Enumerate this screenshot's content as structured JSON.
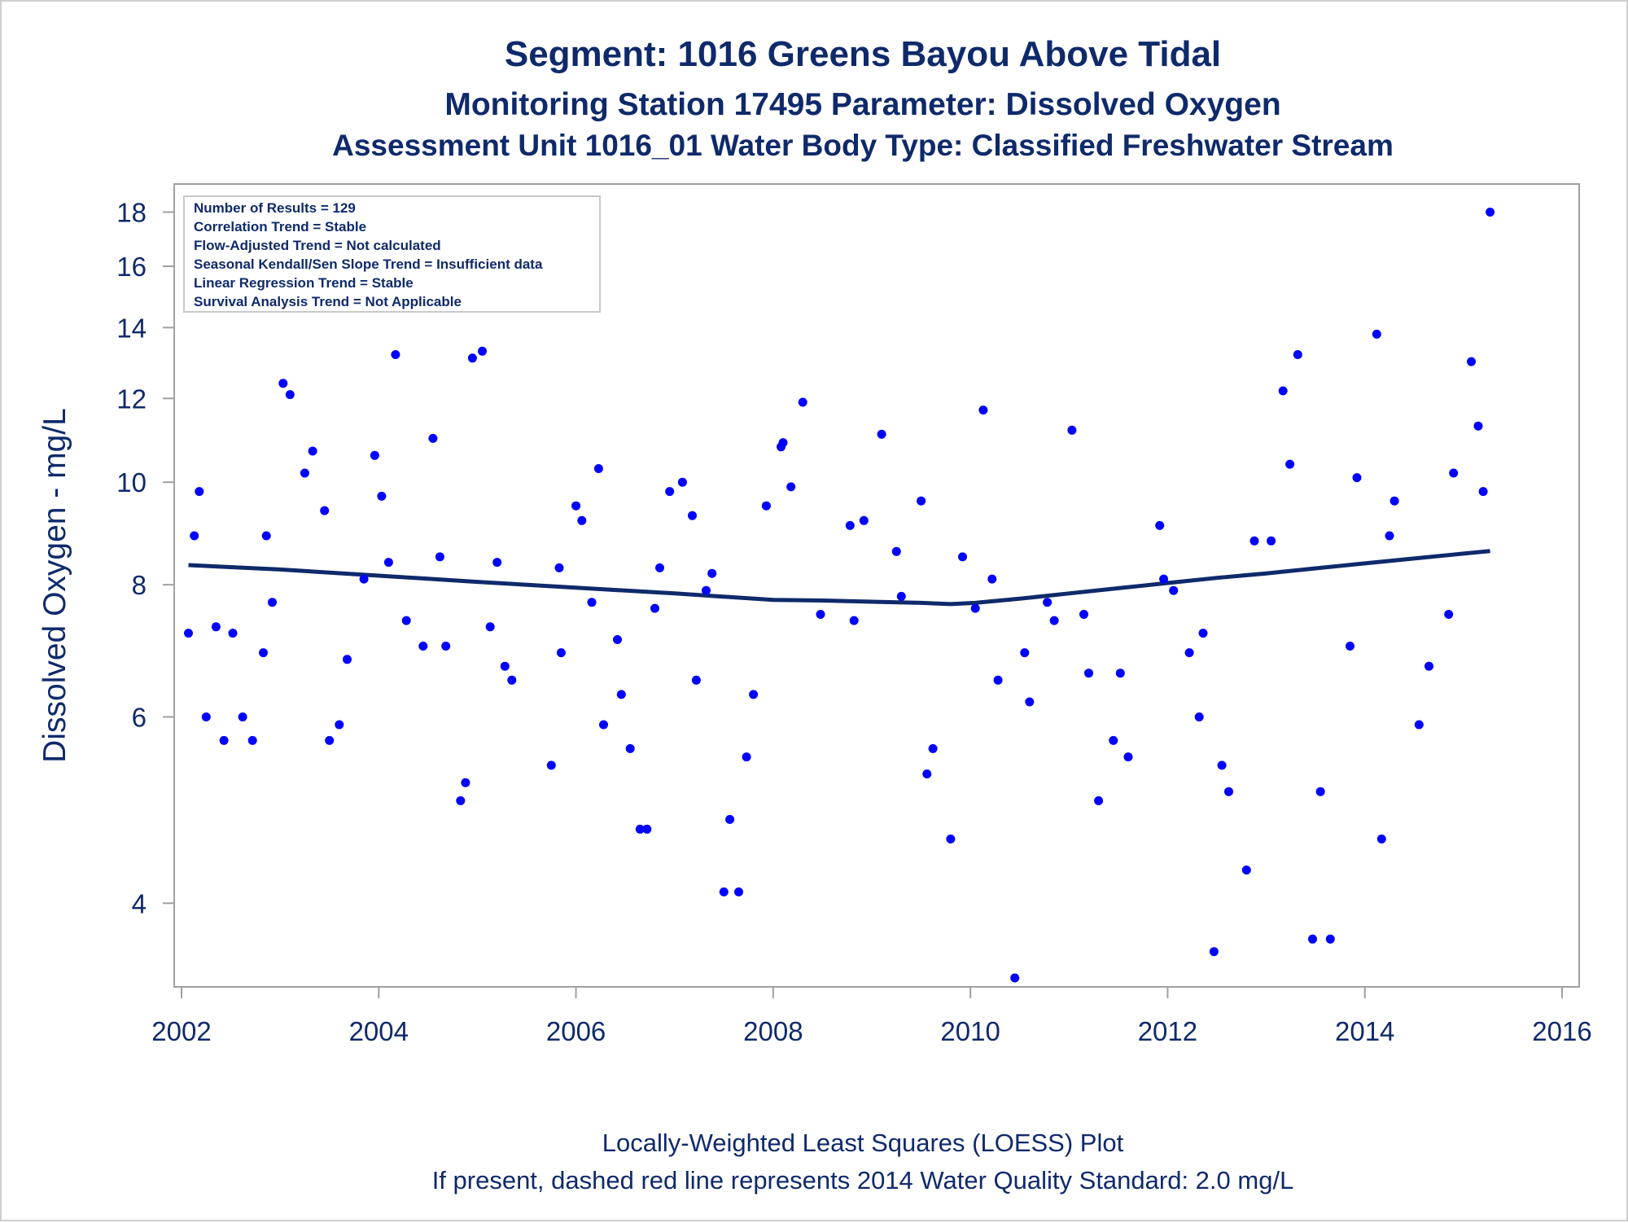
{
  "titles": {
    "line1": "Segment: 1016  Greens Bayou Above Tidal",
    "line2": "Monitoring Station 17495 Parameter: Dissolved Oxygen",
    "line3": "Assessment Unit 1016_01   Water Body Type: Classified Freshwater Stream"
  },
  "stats_box": {
    "lines": [
      "Number of Results = 129",
      "Correlation Trend = Stable",
      "Flow-Adjusted Trend = Not calculated",
      "Seasonal Kendall/Sen Slope Trend = Insufficient data",
      "Linear Regression Trend = Stable",
      "Survival Analysis Trend = Not Applicable"
    ]
  },
  "footnotes": {
    "line1": "Locally-Weighted Least Squares (LOESS) Plot",
    "line2": "If present, dashed red line represents 2014 Water Quality Standard: 2.0 mg/L"
  },
  "colors": {
    "text": "#0f2a6b",
    "points": "#0000ff",
    "loess": "#0f2a6b",
    "axis": "#a0a0a0"
  },
  "chart_data": {
    "type": "scatter",
    "xlabel": "",
    "ylabel": "Dissolved Oxygen - mg/L",
    "y_scale": "log",
    "xlim": [
      2002,
      2016
    ],
    "ylim": [
      3.4,
      18.6
    ],
    "x_ticks": [
      2002,
      2004,
      2006,
      2008,
      2010,
      2012,
      2014,
      2016
    ],
    "x_tick_labels": [
      "2002",
      "2004",
      "2006",
      "2008",
      "2010",
      "2012",
      "2014",
      "2016"
    ],
    "y_ticks": [
      4,
      6,
      8,
      10,
      12,
      14,
      16,
      18
    ],
    "y_tick_labels": [
      "4",
      "6",
      "8",
      "10",
      "12",
      "14",
      "16",
      "18"
    ],
    "grid": false,
    "legend": "none",
    "series": [
      {
        "values": [
          [
            2002.07,
            7.2
          ],
          [
            2002.13,
            8.9
          ],
          [
            2002.18,
            9.8
          ],
          [
            2002.25,
            6.0
          ],
          [
            2002.35,
            7.3
          ],
          [
            2002.43,
            5.7
          ],
          [
            2002.52,
            7.2
          ],
          [
            2002.62,
            6.0
          ],
          [
            2002.72,
            5.7
          ],
          [
            2002.83,
            6.9
          ],
          [
            2002.86,
            8.9
          ],
          [
            2002.92,
            7.7
          ],
          [
            2003.03,
            12.4
          ],
          [
            2003.1,
            12.1
          ],
          [
            2003.25,
            10.2
          ],
          [
            2003.33,
            10.7
          ],
          [
            2003.45,
            9.4
          ],
          [
            2003.5,
            5.7
          ],
          [
            2003.6,
            5.9
          ],
          [
            2003.68,
            6.8
          ],
          [
            2003.85,
            8.1
          ],
          [
            2003.96,
            10.6
          ],
          [
            2004.03,
            9.7
          ],
          [
            2004.1,
            8.4
          ],
          [
            2004.17,
            13.2
          ],
          [
            2004.28,
            7.4
          ],
          [
            2004.45,
            7.0
          ],
          [
            2004.55,
            11.0
          ],
          [
            2004.62,
            8.5
          ],
          [
            2004.68,
            7.0
          ],
          [
            2004.83,
            5.0
          ],
          [
            2004.88,
            5.2
          ],
          [
            2004.95,
            13.1
          ],
          [
            2005.05,
            13.3
          ],
          [
            2005.13,
            7.3
          ],
          [
            2005.2,
            8.4
          ],
          [
            2005.28,
            6.7
          ],
          [
            2005.35,
            6.5
          ],
          [
            2005.75,
            5.4
          ],
          [
            2005.83,
            8.3
          ],
          [
            2005.85,
            6.9
          ],
          [
            2006.0,
            9.5
          ],
          [
            2006.06,
            9.2
          ],
          [
            2006.16,
            7.7
          ],
          [
            2006.23,
            10.3
          ],
          [
            2006.28,
            5.9
          ],
          [
            2006.42,
            7.1
          ],
          [
            2006.46,
            6.3
          ],
          [
            2006.55,
            5.6
          ],
          [
            2006.65,
            4.7
          ],
          [
            2006.72,
            4.7
          ],
          [
            2006.8,
            7.6
          ],
          [
            2006.85,
            8.3
          ],
          [
            2006.95,
            9.8
          ],
          [
            2007.08,
            10.0
          ],
          [
            2007.18,
            9.3
          ],
          [
            2007.22,
            6.5
          ],
          [
            2007.32,
            7.9
          ],
          [
            2007.38,
            8.2
          ],
          [
            2007.5,
            4.1
          ],
          [
            2007.56,
            4.8
          ],
          [
            2007.65,
            4.1
          ],
          [
            2007.73,
            5.5
          ],
          [
            2007.8,
            6.3
          ],
          [
            2007.93,
            9.5
          ],
          [
            2008.08,
            10.8
          ],
          [
            2008.1,
            10.9
          ],
          [
            2008.18,
            9.9
          ],
          [
            2008.3,
            11.9
          ],
          [
            2008.48,
            7.5
          ],
          [
            2008.78,
            9.1
          ],
          [
            2008.82,
            7.4
          ],
          [
            2008.92,
            9.2
          ],
          [
            2009.1,
            11.1
          ],
          [
            2009.25,
            8.6
          ],
          [
            2009.3,
            7.8
          ],
          [
            2009.5,
            9.6
          ],
          [
            2009.56,
            5.3
          ],
          [
            2009.62,
            5.6
          ],
          [
            2009.8,
            4.6
          ],
          [
            2009.92,
            8.5
          ],
          [
            2010.05,
            7.6
          ],
          [
            2010.13,
            11.7
          ],
          [
            2010.22,
            8.1
          ],
          [
            2010.28,
            6.5
          ],
          [
            2010.45,
            3.4
          ],
          [
            2010.55,
            6.9
          ],
          [
            2010.6,
            6.2
          ],
          [
            2010.78,
            7.7
          ],
          [
            2010.85,
            7.4
          ],
          [
            2011.03,
            11.2
          ],
          [
            2011.15,
            7.5
          ],
          [
            2011.2,
            6.6
          ],
          [
            2011.3,
            5.0
          ],
          [
            2011.45,
            5.7
          ],
          [
            2011.52,
            6.6
          ],
          [
            2011.6,
            5.5
          ],
          [
            2011.92,
            9.1
          ],
          [
            2011.96,
            8.1
          ],
          [
            2012.06,
            7.9
          ],
          [
            2012.22,
            6.9
          ],
          [
            2012.32,
            6.0
          ],
          [
            2012.36,
            7.2
          ],
          [
            2012.47,
            3.6
          ],
          [
            2012.55,
            5.4
          ],
          [
            2012.62,
            5.1
          ],
          [
            2012.8,
            4.3
          ],
          [
            2012.88,
            8.8
          ],
          [
            2013.05,
            8.8
          ],
          [
            2013.17,
            12.2
          ],
          [
            2013.24,
            10.4
          ],
          [
            2013.32,
            13.2
          ],
          [
            2013.47,
            3.7
          ],
          [
            2013.55,
            5.1
          ],
          [
            2013.65,
            3.7
          ],
          [
            2013.85,
            7.0
          ],
          [
            2013.92,
            10.1
          ],
          [
            2014.12,
            13.8
          ],
          [
            2014.17,
            4.6
          ],
          [
            2014.25,
            8.9
          ],
          [
            2014.3,
            9.6
          ],
          [
            2014.55,
            5.9
          ],
          [
            2014.65,
            6.7
          ],
          [
            2014.85,
            7.5
          ],
          [
            2014.9,
            10.2
          ],
          [
            2015.08,
            13.0
          ],
          [
            2015.15,
            11.3
          ],
          [
            2015.2,
            9.8
          ],
          [
            2015.27,
            18.0
          ]
        ]
      }
    ],
    "loess": {
      "x": [
        2002.07,
        2003.0,
        2004.0,
        2005.0,
        2006.0,
        2007.0,
        2008.0,
        2008.5,
        2009.0,
        2009.5,
        2009.8,
        2010.05,
        2010.5,
        2011.0,
        2011.5,
        2012.0,
        2012.5,
        2013.0,
        2013.5,
        2014.0,
        2014.5,
        2015.0,
        2015.27
      ],
      "y": [
        8.35,
        8.27,
        8.16,
        8.05,
        7.95,
        7.85,
        7.74,
        7.73,
        7.71,
        7.69,
        7.67,
        7.69,
        7.76,
        7.85,
        7.94,
        8.03,
        8.12,
        8.2,
        8.29,
        8.38,
        8.47,
        8.56,
        8.61
      ]
    }
  }
}
